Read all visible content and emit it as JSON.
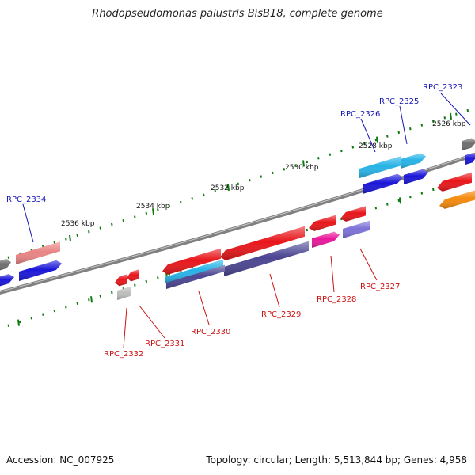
{
  "title": "Rhodopseudomonas palustris BisB18, complete genome",
  "footer": {
    "accession": "Accession: NC_007925",
    "summary": "Topology: circular; Length: 5,513,844 bp; Genes: 4,958"
  },
  "ticks": [
    "2526 kbp",
    "2528 kbp",
    "2530 kbp",
    "2532 kbp",
    "2534 kbp",
    "2536 kbp"
  ],
  "gene_labels_top": [
    "RPC_2323",
    "RPC_2325",
    "RPC_2326",
    "RPC_2334"
  ],
  "gene_labels_bottom": [
    "RPC_2327",
    "RPC_2328",
    "RPC_2329",
    "RPC_2330",
    "RPC_2331",
    "RPC_2332"
  ],
  "colors": {
    "backbone": "#808080",
    "tick_green": "#117a11",
    "label_blue": "#1515b5",
    "label_red": "#cc1111",
    "cds_red": "#e8161a",
    "cds_blue": "#1a16d8",
    "cds_cyan": "#27b3e6",
    "cds_indigo": "#4b4592",
    "cds_violet": "#7c72d8",
    "cds_pink": "#e9189b",
    "cds_salmon": "#e98484",
    "cds_orange": "#f48a0c",
    "cds_gray": "#6e6e6e",
    "cds_lightgray": "#bdbdbd"
  }
}
